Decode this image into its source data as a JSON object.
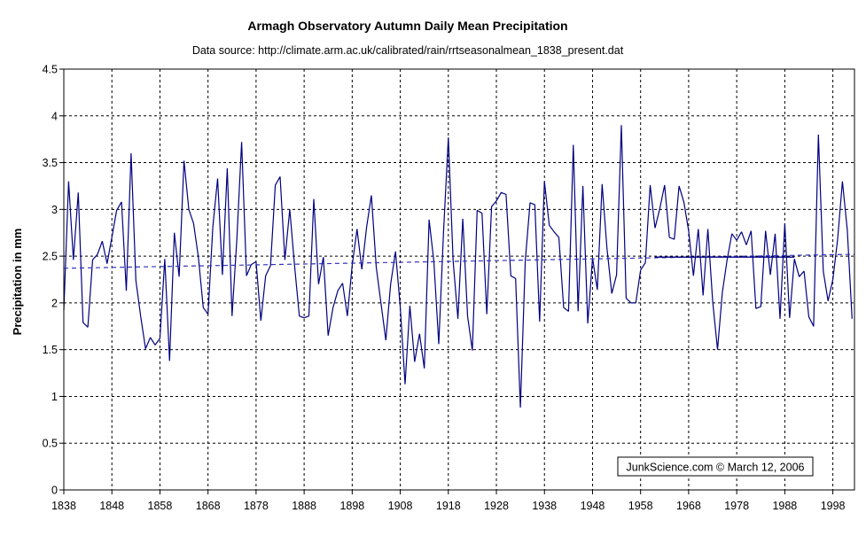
{
  "colors": {
    "background": "#ffffff",
    "grid": "#000000",
    "axis": "#000000",
    "text": "#000000",
    "data_line": "#000080",
    "trend_line": "#3333bb"
  },
  "watermark": "JunkScience.com © March 12, 2006",
  "chart_data": {
    "type": "line",
    "title": "Armagh Observatory Autumn Daily Mean Precipitation",
    "subtitle": "Data source: http://climate.arm.ac.uk/calibrated/rain/rrtseasonalmean_1838_present.dat",
    "xlabel": "",
    "ylabel": "Precipitation in mm",
    "xlim": [
      1838,
      2002.5
    ],
    "ylim": [
      0,
      4.5
    ],
    "grid": "dashed",
    "legend": "none",
    "xticks": [
      1838,
      1848,
      1858,
      1868,
      1878,
      1888,
      1898,
      1908,
      1918,
      1928,
      1938,
      1948,
      1958,
      1968,
      1978,
      1988,
      1998
    ],
    "yticks": [
      {
        "v": 0,
        "label": "0"
      },
      {
        "v": 0.5,
        "label": "0.5"
      },
      {
        "v": 1,
        "label": "1"
      },
      {
        "v": 1.5,
        "label": "1.5"
      },
      {
        "v": 2,
        "label": "2"
      },
      {
        "v": 2.5,
        "label": "2.5"
      },
      {
        "v": 3,
        "label": "3"
      },
      {
        "v": 3.5,
        "label": "3.5"
      },
      {
        "v": 4,
        "label": "4"
      },
      {
        "v": 4.5,
        "label": "4.5"
      }
    ],
    "series": [
      {
        "name": "autumn-daily-mean-precipitation",
        "type": "line",
        "style": "solid",
        "color": "#000080",
        "width": 1.2,
        "x_start": 1838,
        "values": [
          1.92,
          3.3,
          2.46,
          3.18,
          1.79,
          1.74,
          2.46,
          2.52,
          2.66,
          2.42,
          2.7,
          2.99,
          3.08,
          2.13,
          3.6,
          2.24,
          1.85,
          1.51,
          1.63,
          1.55,
          1.62,
          2.47,
          1.38,
          2.75,
          2.28,
          3.52,
          3.0,
          2.85,
          2.49,
          1.95,
          1.88,
          2.81,
          3.33,
          2.3,
          3.44,
          1.86,
          2.68,
          3.72,
          2.29,
          2.41,
          2.44,
          1.81,
          2.29,
          2.4,
          3.26,
          3.35,
          2.46,
          3.0,
          2.4,
          1.86,
          1.84,
          1.86,
          3.11,
          2.2,
          2.49,
          1.65,
          1.95,
          2.13,
          2.21,
          1.86,
          2.4,
          2.79,
          2.36,
          2.81,
          3.15,
          2.38,
          1.99,
          1.6,
          2.2,
          2.55,
          1.95,
          1.13,
          1.97,
          1.37,
          1.67,
          1.3,
          2.89,
          2.44,
          1.56,
          2.76,
          3.77,
          2.45,
          1.83,
          2.9,
          1.86,
          1.49,
          2.99,
          2.96,
          1.88,
          3.03,
          3.09,
          3.18,
          3.16,
          2.29,
          2.26,
          0.88,
          2.45,
          3.07,
          3.05,
          1.8,
          3.3,
          2.83,
          2.76,
          2.7,
          1.95,
          1.91,
          3.69,
          1.91,
          3.25,
          1.78,
          2.48,
          2.14,
          3.27,
          2.59,
          2.1,
          2.3,
          3.9,
          2.05,
          2.0,
          2.0,
          2.35,
          2.43,
          3.26,
          2.8,
          3.01,
          3.26,
          2.7,
          2.68,
          3.25,
          3.08,
          2.77,
          2.29,
          2.79,
          2.08,
          2.79,
          2.02,
          1.5,
          2.11,
          2.46,
          2.74,
          2.67,
          2.76,
          2.62,
          2.77,
          1.94,
          1.96,
          2.77,
          2.3,
          2.74,
          1.83,
          2.85,
          1.84,
          2.47,
          2.28,
          2.34,
          1.85,
          1.75,
          3.8,
          2.34,
          2.02,
          2.25,
          2.68,
          3.3,
          2.78,
          1.83
        ]
      },
      {
        "name": "linear-trend",
        "type": "line",
        "style": "dashed",
        "color": "#3333bb",
        "width": 1.2,
        "x": [
          1838,
          2002.5
        ],
        "values": [
          2.37,
          2.52
        ]
      },
      {
        "name": "mean-reference-1961-1990",
        "type": "line",
        "style": "solid",
        "color": "#000080",
        "width": 1.3,
        "x": [
          1961,
          1990
        ],
        "values": [
          2.49,
          2.49
        ]
      }
    ],
    "watermark": "JunkScience.com © March 12, 2006"
  }
}
